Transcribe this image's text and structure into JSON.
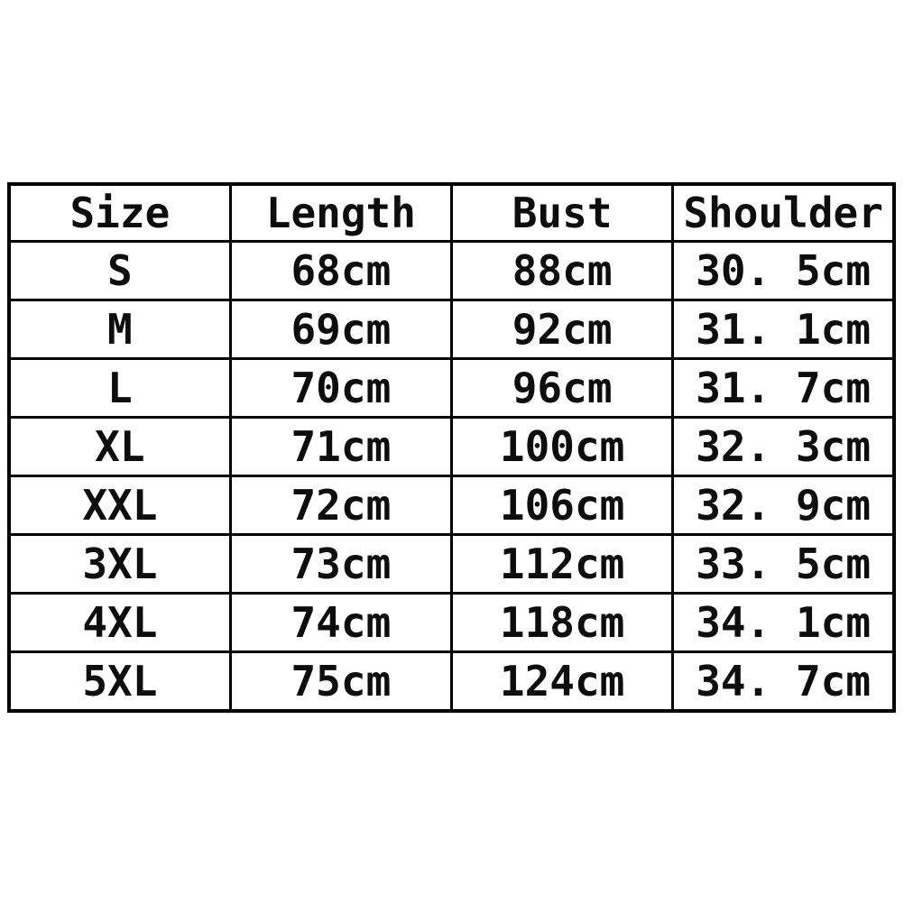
{
  "page": {
    "background": "#ffffff",
    "border_color": "#000000",
    "text_color": "#0d0d0d"
  },
  "chart_data": {
    "type": "table",
    "title": "",
    "columns": [
      "Size",
      "Length",
      "Bust",
      "Shoulder"
    ],
    "rows": [
      [
        "S",
        "68cm",
        "88cm",
        "30. 5cm"
      ],
      [
        "M",
        "69cm",
        "92cm",
        "31. 1cm"
      ],
      [
        "L",
        "70cm",
        "96cm",
        "31. 7cm"
      ],
      [
        "XL",
        "71cm",
        "100cm",
        "32. 3cm"
      ],
      [
        "XXL",
        "72cm",
        "106cm",
        "32. 9cm"
      ],
      [
        "3XL",
        "73cm",
        "112cm",
        "33. 5cm"
      ],
      [
        "4XL",
        "74cm",
        "118cm",
        "34. 1cm"
      ],
      [
        "5XL",
        "75cm",
        "124cm",
        "34. 7cm"
      ]
    ],
    "layout": {
      "grid": true,
      "columns_equal_width": true,
      "header_row": true
    }
  }
}
